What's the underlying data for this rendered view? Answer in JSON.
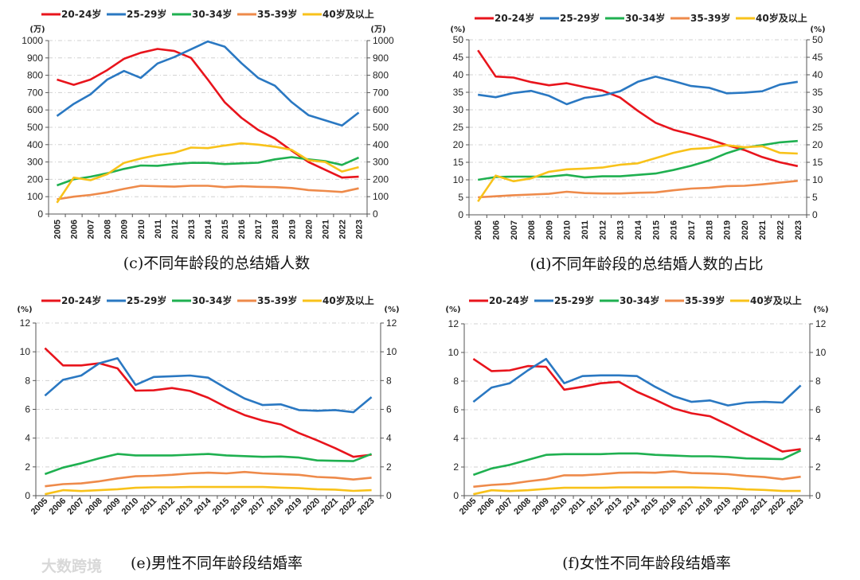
{
  "watermark": "大数跨境",
  "colors": {
    "20-24岁": "#e8141c",
    "25-29岁": "#2a78c2",
    "30-34岁": "#1fb050",
    "35-39岁": "#ee8a4a",
    "40岁及以上": "#f8c21a"
  },
  "chart_data": [
    {
      "type": "line",
      "title": "(c)不同年龄段的总结婚人数",
      "unit": "(万)",
      "ylim": [
        0,
        1000
      ],
      "yticks": [
        0,
        100,
        200,
        300,
        400,
        500,
        600,
        700,
        800,
        900,
        1000
      ],
      "grid": true,
      "legend": "top",
      "categories": [
        "2005",
        "2006",
        "2007",
        "2008",
        "2009",
        "2010",
        "2011",
        "2012",
        "2013",
        "2014",
        "2015",
        "2016",
        "2017",
        "2018",
        "2019",
        "2020",
        "2021",
        "2022",
        "2023"
      ],
      "series": [
        {
          "name": "20-24岁",
          "values": [
            775,
            745,
            775,
            830,
            895,
            930,
            952,
            940,
            900,
            775,
            645,
            555,
            485,
            435,
            365,
            300,
            255,
            210,
            215
          ]
        },
        {
          "name": "25-29岁",
          "values": [
            565,
            635,
            690,
            775,
            825,
            785,
            868,
            905,
            950,
            995,
            965,
            870,
            785,
            740,
            645,
            570,
            540,
            510,
            585
          ]
        },
        {
          "name": "30-34岁",
          "values": [
            165,
            200,
            215,
            235,
            260,
            280,
            278,
            288,
            295,
            295,
            288,
            292,
            296,
            315,
            328,
            315,
            305,
            283,
            325
          ]
        },
        {
          "name": "35-39岁",
          "values": [
            85,
            100,
            110,
            125,
            145,
            163,
            160,
            158,
            163,
            163,
            155,
            160,
            157,
            155,
            150,
            138,
            133,
            127,
            148
          ]
        },
        {
          "name": "40岁及以上",
          "values": [
            65,
            210,
            195,
            230,
            295,
            320,
            340,
            353,
            383,
            380,
            395,
            408,
            400,
            388,
            370,
            310,
            300,
            245,
            270
          ]
        }
      ]
    },
    {
      "type": "line",
      "title": "(d)不同年龄段的总结婚人数的占比",
      "unit": "(%)",
      "ylim": [
        0,
        50
      ],
      "yticks": [
        0,
        5,
        10,
        15,
        20,
        25,
        30,
        35,
        40,
        45,
        50
      ],
      "grid": true,
      "legend": "top",
      "categories": [
        "2005",
        "2006",
        "2007",
        "2008",
        "2009",
        "2010",
        "2011",
        "2012",
        "2013",
        "2014",
        "2015",
        "2016",
        "2017",
        "2018",
        "2019",
        "2020",
        "2021",
        "2022",
        "2023"
      ],
      "series": [
        {
          "name": "20-24岁",
          "values": [
            47,
            39.5,
            39.2,
            37.9,
            37,
            37.6,
            36.5,
            35.5,
            33.5,
            29.7,
            26.3,
            24.3,
            23,
            21.6,
            19.9,
            18.5,
            16.5,
            15,
            13.9
          ]
        },
        {
          "name": "25-29岁",
          "values": [
            34.3,
            33.6,
            34.8,
            35.4,
            34,
            31.6,
            33.4,
            34.1,
            35.3,
            38,
            39.5,
            38.2,
            36.8,
            36.3,
            34.7,
            34.9,
            35.3,
            37.2,
            38
          ]
        },
        {
          "name": "30-34岁",
          "values": [
            10,
            10.8,
            10.9,
            10.9,
            10.9,
            11.4,
            10.7,
            11,
            11,
            11.4,
            11.8,
            12.8,
            14,
            15.5,
            17.6,
            19.2,
            19.9,
            20.7,
            21.1
          ]
        },
        {
          "name": "35-39岁",
          "values": [
            5,
            5.3,
            5.6,
            5.8,
            6,
            6.6,
            6.2,
            6.1,
            6.1,
            6.3,
            6.4,
            7,
            7.5,
            7.7,
            8.2,
            8.3,
            8.7,
            9.2,
            9.7
          ]
        },
        {
          "name": "40岁及以上",
          "values": [
            3.8,
            11.2,
            9.6,
            10.4,
            12.3,
            13,
            13.2,
            13.5,
            14.3,
            14.7,
            16.2,
            17.7,
            18.8,
            19.1,
            19.9,
            19.3,
            19.6,
            17.7,
            17.5
          ]
        }
      ]
    },
    {
      "type": "line",
      "title": "(e)男性不同年龄段结婚率",
      "unit": "(%)",
      "ylim": [
        0,
        12
      ],
      "yticks": [
        0,
        2,
        4,
        6,
        8,
        10,
        12
      ],
      "grid": true,
      "legend": "top",
      "categories": [
        "2005",
        "2006",
        "2007",
        "2008",
        "2009",
        "2010",
        "2011",
        "2012",
        "2013",
        "2014",
        "2015",
        "2016",
        "2017",
        "2018",
        "2019",
        "2020",
        "2021",
        "2022",
        "2023"
      ],
      "series": [
        {
          "name": "20-24岁",
          "values": [
            10.25,
            9.05,
            9.05,
            9.2,
            8.85,
            7.3,
            7.32,
            7.48,
            7.28,
            6.8,
            6.15,
            5.6,
            5.22,
            4.95,
            4.35,
            3.85,
            3.3,
            2.7,
            2.85
          ]
        },
        {
          "name": "25-29岁",
          "values": [
            6.95,
            8.05,
            8.35,
            9.2,
            9.55,
            7.7,
            8.25,
            8.3,
            8.35,
            8.2,
            7.45,
            6.75,
            6.3,
            6.35,
            5.95,
            5.9,
            5.95,
            5.8,
            6.85
          ]
        },
        {
          "name": "30-34岁",
          "values": [
            1.5,
            1.95,
            2.25,
            2.6,
            2.9,
            2.8,
            2.8,
            2.8,
            2.85,
            2.9,
            2.8,
            2.75,
            2.7,
            2.72,
            2.65,
            2.45,
            2.42,
            2.4,
            2.9
          ]
        },
        {
          "name": "35-39岁",
          "values": [
            0.65,
            0.8,
            0.85,
            1.0,
            1.2,
            1.35,
            1.38,
            1.45,
            1.55,
            1.6,
            1.55,
            1.65,
            1.55,
            1.5,
            1.45,
            1.3,
            1.25,
            1.12,
            1.25
          ]
        },
        {
          "name": "40岁及以上",
          "values": [
            0.1,
            0.38,
            0.32,
            0.38,
            0.45,
            0.55,
            0.58,
            0.58,
            0.6,
            0.6,
            0.6,
            0.6,
            0.6,
            0.56,
            0.52,
            0.45,
            0.42,
            0.33,
            0.38
          ]
        }
      ]
    },
    {
      "type": "line",
      "title": "(f)女性不同年龄段结婚率",
      "unit": "(%)",
      "ylim": [
        0,
        12
      ],
      "yticks": [
        0,
        2,
        4,
        6,
        8,
        10,
        12
      ],
      "grid": true,
      "legend": "top",
      "categories": [
        "2005",
        "2006",
        "2007",
        "2008",
        "2009",
        "2010",
        "2011",
        "2012",
        "2013",
        "2014",
        "2015",
        "2016",
        "2017",
        "2018",
        "2019",
        "2020",
        "2021",
        "2022",
        "2023"
      ],
      "series": [
        {
          "name": "20-24岁",
          "values": [
            9.55,
            8.7,
            8.75,
            9.05,
            9.0,
            7.4,
            7.6,
            7.85,
            7.95,
            7.25,
            6.7,
            6.1,
            5.75,
            5.55,
            4.95,
            4.3,
            3.7,
            3.08,
            3.25
          ]
        },
        {
          "name": "25-29岁",
          "values": [
            6.55,
            7.55,
            7.85,
            8.75,
            9.55,
            7.85,
            8.35,
            8.4,
            8.4,
            8.35,
            7.6,
            6.95,
            6.55,
            6.65,
            6.3,
            6.5,
            6.55,
            6.5,
            7.7
          ]
        },
        {
          "name": "30-34岁",
          "values": [
            1.45,
            1.9,
            2.15,
            2.5,
            2.85,
            2.9,
            2.9,
            2.9,
            2.95,
            2.95,
            2.85,
            2.8,
            2.75,
            2.75,
            2.7,
            2.6,
            2.58,
            2.55,
            3.15
          ]
        },
        {
          "name": "35-39岁",
          "values": [
            0.62,
            0.75,
            0.82,
            1.0,
            1.15,
            1.42,
            1.42,
            1.5,
            1.6,
            1.62,
            1.6,
            1.7,
            1.58,
            1.55,
            1.5,
            1.38,
            1.3,
            1.15,
            1.32
          ]
        },
        {
          "name": "40岁及以上",
          "values": [
            0.1,
            0.38,
            0.32,
            0.38,
            0.48,
            0.55,
            0.55,
            0.55,
            0.58,
            0.58,
            0.58,
            0.58,
            0.58,
            0.55,
            0.52,
            0.44,
            0.4,
            0.33,
            0.33
          ]
        }
      ]
    }
  ]
}
